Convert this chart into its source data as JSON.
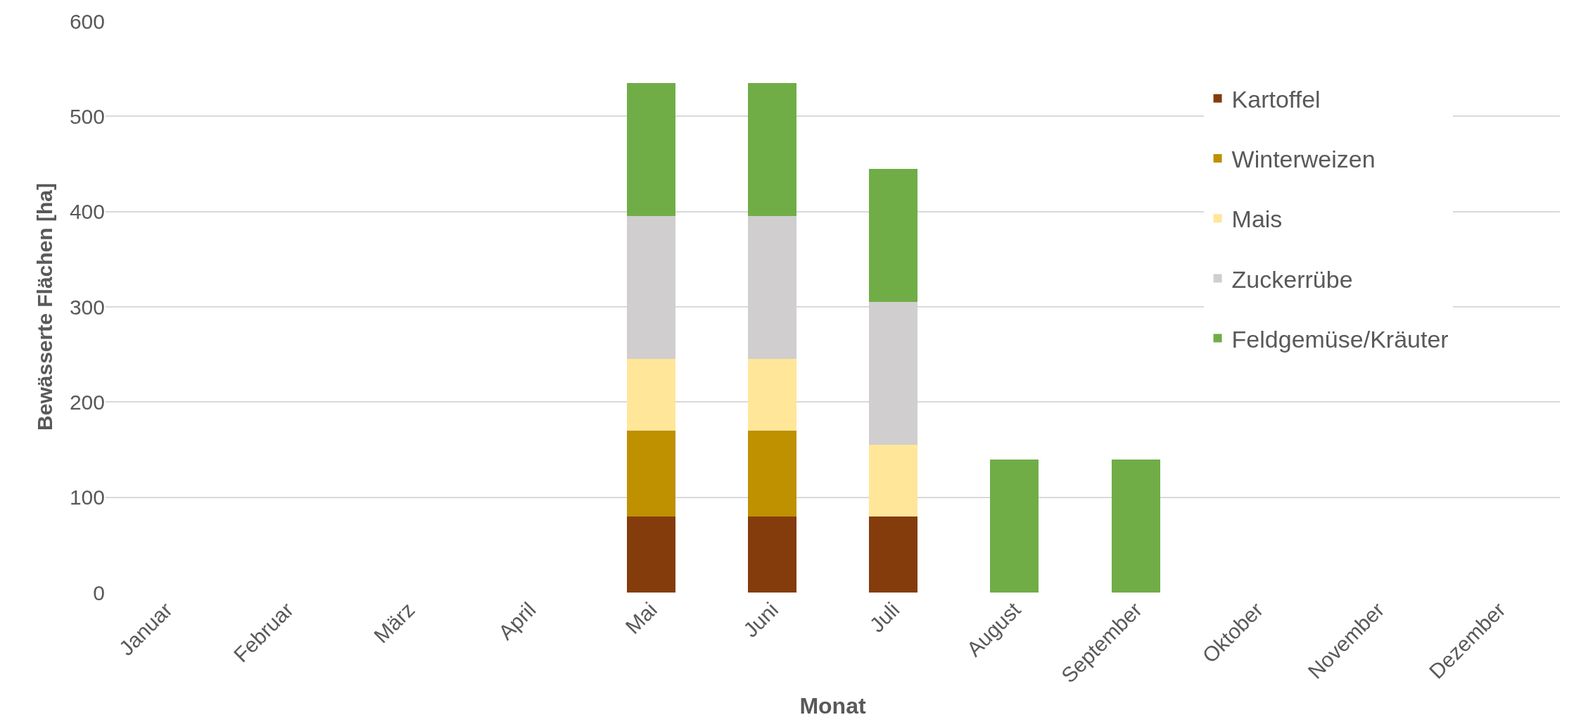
{
  "chart_data": {
    "type": "bar",
    "stacked": true,
    "xlabel": "Monat",
    "ylabel": "Bewässerte Flächen [ha]",
    "categories": [
      "Januar",
      "Februar",
      "März",
      "April",
      "Mai",
      "Juni",
      "Juli",
      "August",
      "September",
      "Oktober",
      "November",
      "Dezember"
    ],
    "series": [
      {
        "name": "Kartoffel",
        "color": "#843c0c",
        "values": [
          null,
          null,
          null,
          null,
          80,
          80,
          80,
          null,
          null,
          null,
          null,
          null
        ]
      },
      {
        "name": "Winterweizen",
        "color": "#bf9000",
        "values": [
          null,
          null,
          null,
          null,
          90,
          90,
          null,
          null,
          null,
          null,
          null,
          null
        ]
      },
      {
        "name": "Mais",
        "color": "#ffe699",
        "values": [
          null,
          null,
          null,
          null,
          75,
          75,
          75,
          null,
          null,
          null,
          null,
          null
        ]
      },
      {
        "name": "Zuckerrübe",
        "color": "#d0cece",
        "values": [
          null,
          null,
          null,
          null,
          150,
          150,
          150,
          null,
          null,
          null,
          null,
          null
        ]
      },
      {
        "name": "Feldgemüse/Kräuter",
        "color": "#70ad47",
        "values": [
          null,
          null,
          null,
          null,
          140,
          140,
          140,
          140,
          140,
          null,
          null,
          null
        ]
      }
    ],
    "ylim": [
      0,
      600
    ],
    "yticks": [
      0,
      100,
      200,
      300,
      400,
      500,
      600
    ],
    "grid": "y",
    "legend": "right"
  }
}
